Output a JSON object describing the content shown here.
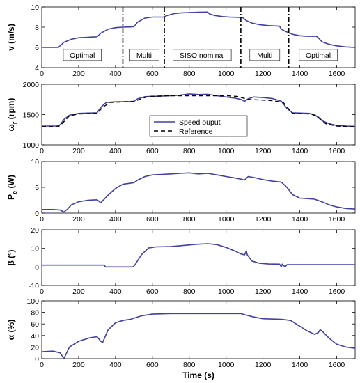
{
  "figure": {
    "xlabel": "Time (s)",
    "xlim": [
      0,
      1700
    ],
    "xticks": [
      0,
      200,
      400,
      600,
      800,
      1000,
      1200,
      1400,
      1600
    ]
  },
  "chart_data": [
    {
      "type": "line",
      "ylabel": "v (m/s)",
      "ylim": [
        4,
        10
      ],
      "yticks": [
        4,
        6,
        8,
        10
      ],
      "series": [
        {
          "color": "#4040a0",
          "x": [
            0,
            90,
            120,
            160,
            200,
            250,
            300,
            320,
            360,
            400,
            440,
            480,
            500,
            520,
            560,
            600,
            660,
            680,
            720,
            760,
            800,
            850,
            900,
            910,
            940,
            980,
            1020,
            1060,
            1090,
            1110,
            1140,
            1180,
            1230,
            1290,
            1300,
            1320,
            1360,
            1400,
            1440,
            1490,
            1500,
            1520,
            1560,
            1600,
            1650,
            1700
          ],
          "y": [
            6.0,
            6.0,
            6.5,
            6.8,
            6.95,
            7.0,
            7.05,
            7.4,
            7.8,
            7.95,
            8.0,
            8.02,
            8.05,
            8.5,
            8.9,
            9.0,
            9.0,
            9.15,
            9.35,
            9.42,
            9.45,
            9.48,
            9.5,
            9.3,
            9.15,
            9.05,
            9.0,
            8.98,
            8.95,
            8.65,
            8.4,
            8.25,
            8.15,
            8.1,
            7.8,
            7.6,
            7.3,
            7.15,
            7.1,
            7.1,
            6.95,
            6.55,
            6.3,
            6.15,
            6.05,
            6.0
          ]
        }
      ],
      "annotations": [
        {
          "text": "Optimal",
          "x": 220,
          "y": 5.25
        },
        {
          "text": "Multi",
          "x": 555,
          "y": 5.25
        },
        {
          "text": "SISO nominal",
          "x": 870,
          "y": 5.25
        },
        {
          "text": "Multi",
          "x": 1210,
          "y": 5.25
        },
        {
          "text": "Optimal",
          "x": 1500,
          "y": 5.25
        }
      ],
      "vlines": [
        440,
        665,
        1080,
        1340
      ]
    },
    {
      "type": "line",
      "ylabel_main": "ω",
      "ylabel_sub": "r",
      "ylabel_rest": " (rpm)",
      "ylim": [
        1000,
        2000
      ],
      "yticks": [
        1000,
        1500,
        2000
      ],
      "legend": {
        "placement": "center",
        "entries": [
          "Speed ouput",
          "Reference"
        ]
      },
      "series": [
        {
          "name": "Speed ouput",
          "color": "#4040a0",
          "dash": false,
          "x": [
            0,
            80,
            100,
            120,
            150,
            200,
            250,
            300,
            320,
            350,
            400,
            440,
            480,
            500,
            520,
            560,
            600,
            650,
            700,
            750,
            800,
            850,
            900,
            950,
            1000,
            1050,
            1080,
            1100,
            1120,
            1150,
            1200,
            1250,
            1300,
            1330,
            1360,
            1400,
            1450,
            1480,
            1520,
            1560,
            1600,
            1650,
            1700
          ],
          "y": [
            1310,
            1310,
            1330,
            1420,
            1490,
            1520,
            1525,
            1530,
            1620,
            1700,
            1710,
            1712,
            1715,
            1720,
            1760,
            1795,
            1800,
            1805,
            1810,
            1820,
            1840,
            1830,
            1835,
            1810,
            1790,
            1770,
            1750,
            1720,
            1760,
            1790,
            1780,
            1765,
            1720,
            1600,
            1530,
            1525,
            1520,
            1500,
            1400,
            1350,
            1320,
            1310,
            1305
          ]
        },
        {
          "name": "Reference",
          "color": "#000000",
          "dash": true,
          "x": [
            0,
            90,
            110,
            150,
            200,
            300,
            330,
            370,
            450,
            500,
            540,
            580,
            700,
            1000,
            1060,
            1120,
            1250,
            1310,
            1360,
            1460,
            1500,
            1540,
            1600,
            1700
          ],
          "y": [
            1300,
            1300,
            1350,
            1480,
            1510,
            1520,
            1620,
            1700,
            1710,
            1715,
            1760,
            1800,
            1810,
            1810,
            1800,
            1750,
            1730,
            1700,
            1520,
            1510,
            1460,
            1350,
            1310,
            1300
          ]
        }
      ]
    },
    {
      "type": "line",
      "ylabel_main": "P",
      "ylabel_sub": "e",
      "ylabel_rest": " (W)",
      "ylim": [
        0,
        10
      ],
      "yticks": [
        0,
        5,
        10
      ],
      "series": [
        {
          "color": "#4040a0",
          "x": [
            0,
            60,
            100,
            120,
            140,
            160,
            200,
            250,
            300,
            320,
            360,
            400,
            440,
            480,
            500,
            520,
            560,
            600,
            650,
            700,
            750,
            800,
            850,
            900,
            950,
            1000,
            1050,
            1080,
            1100,
            1120,
            1150,
            1200,
            1250,
            1300,
            1330,
            1360,
            1400,
            1450,
            1480,
            1520,
            1560,
            1600,
            1650,
            1700
          ],
          "y": [
            0.7,
            0.7,
            0.6,
            0.2,
            0.8,
            1.6,
            2.2,
            2.5,
            2.6,
            2.0,
            3.5,
            4.8,
            5.6,
            5.8,
            5.9,
            6.4,
            7.1,
            7.4,
            7.5,
            7.6,
            7.7,
            7.8,
            7.6,
            7.7,
            7.4,
            7.1,
            6.8,
            6.6,
            6.4,
            7.1,
            6.9,
            6.5,
            6.2,
            6.0,
            5.0,
            3.6,
            2.9,
            2.8,
            2.7,
            2.2,
            1.6,
            1.2,
            0.9,
            0.8
          ]
        }
      ]
    },
    {
      "type": "line",
      "ylabel": "β (º)",
      "ylim": [
        -10,
        20
      ],
      "yticks": [
        -10,
        0,
        10,
        20
      ],
      "series": [
        {
          "color": "#4040a0",
          "x": [
            0,
            340,
            345,
            495,
            505,
            540,
            580,
            620,
            700,
            760,
            840,
            900,
            950,
            1000,
            1050,
            1080,
            1100,
            1110,
            1115,
            1140,
            1180,
            1230,
            1290,
            1300,
            1305,
            1320,
            1330,
            1700
          ],
          "y": [
            1.0,
            1.0,
            0.0,
            0.0,
            1.0,
            6.5,
            10.2,
            10.8,
            11.0,
            11.5,
            12.2,
            12.5,
            12.0,
            10.5,
            8.5,
            7.0,
            6.5,
            8.7,
            6.5,
            3.2,
            2.0,
            1.6,
            1.5,
            0.0,
            1.5,
            0.0,
            1.2,
            1.2
          ]
        }
      ]
    },
    {
      "type": "line",
      "ylabel": "α (%)",
      "ylim": [
        0,
        100
      ],
      "yticks": [
        0,
        20,
        40,
        60,
        80,
        100
      ],
      "series": [
        {
          "color": "#4040a0",
          "x": [
            0,
            60,
            100,
            120,
            150,
            200,
            260,
            300,
            320,
            330,
            360,
            400,
            440,
            480,
            500,
            540,
            600,
            700,
            800,
            900,
            1000,
            1080,
            1100,
            1150,
            1200,
            1300,
            1350,
            1380,
            1440,
            1480,
            1500,
            1510,
            1520,
            1560,
            1600,
            1650,
            1700
          ],
          "y": [
            12,
            13,
            10,
            0,
            20,
            30,
            36,
            38,
            30,
            28,
            50,
            62,
            66,
            68,
            70,
            74,
            77,
            78,
            78,
            78,
            78,
            78,
            76,
            72,
            69,
            68,
            66,
            60,
            48,
            42,
            45,
            50,
            48,
            35,
            25,
            20,
            18
          ]
        }
      ]
    }
  ]
}
